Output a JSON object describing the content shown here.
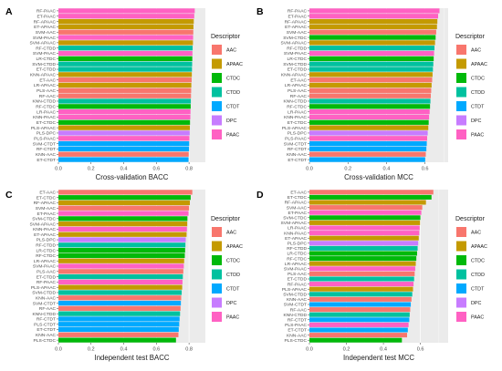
{
  "legend_title": "Descriptor",
  "legend_items": [
    "AAC",
    "APAAC",
    "CTDC",
    "CTDD",
    "CTDT",
    "DPC",
    "PAAC"
  ],
  "colors": {
    "AAC": "#F8766D",
    "APAAC": "#C49A00",
    "CTDC": "#00B90A",
    "CTDD": "#00C19F",
    "CTDT": "#00A9FF",
    "DPC": "#C77CFF",
    "PAAC": "#FF61C3",
    "background": "#EBEBEB",
    "grid": "#FFFFFF"
  },
  "chart_data": [
    {
      "type": "bar",
      "orientation": "horizontal",
      "panel": "A",
      "xlabel": "Cross-validation BACC",
      "ylabel": "",
      "xlim": [
        0,
        0.9
      ],
      "xticks": [
        "0.0",
        "0.2",
        "0.4",
        "0.6",
        "0.8"
      ],
      "categories": [
        "RF-PAAC",
        "ET-PAAC",
        "RF-APAAC",
        "ET-APAAC",
        "SVM-AAC",
        "SVM-PAAC",
        "SVM-APAAC",
        "RF-CTDD",
        "SVM-PAAC",
        "LR-CTDC",
        "SVM-CTDD",
        "ET-CTDD",
        "KNN-APAAC",
        "ET-AAC",
        "LR-APAAC",
        "PLS-AAC",
        "RF-AAC",
        "KNN-CTDD",
        "RF-CTDC",
        "LR-PAAC",
        "KNN-PAAC",
        "ET-CTDC",
        "PLS-APAAC",
        "PLS-DPC",
        "PLS-PAAC",
        "SVM-CTDT",
        "RF-CTDT",
        "KNN-AAC",
        "ET-CTDT"
      ],
      "descriptors": [
        "PAAC",
        "PAAC",
        "APAAC",
        "APAAC",
        "AAC",
        "PAAC",
        "APAAC",
        "CTDD",
        "PAAC",
        "CTDC",
        "CTDD",
        "CTDD",
        "APAAC",
        "AAC",
        "APAAC",
        "AAC",
        "AAC",
        "CTDD",
        "CTDC",
        "PAAC",
        "PAAC",
        "CTDC",
        "APAAC",
        "DPC",
        "PAAC",
        "CTDT",
        "CTDT",
        "AAC",
        "CTDT"
      ],
      "values": [
        0.835,
        0.832,
        0.829,
        0.827,
        0.826,
        0.825,
        0.824,
        0.822,
        0.821,
        0.82,
        0.819,
        0.818,
        0.817,
        0.816,
        0.814,
        0.813,
        0.812,
        0.811,
        0.81,
        0.809,
        0.808,
        0.806,
        0.805,
        0.804,
        0.802,
        0.801,
        0.8,
        0.798,
        0.797
      ]
    },
    {
      "type": "bar",
      "orientation": "horizontal",
      "panel": "B",
      "xlabel": "Cross-validation MCC",
      "ylabel": "",
      "xlim": [
        0,
        0.72
      ],
      "xticks": [
        "0.0",
        "0.2",
        "0.4",
        "0.6"
      ],
      "categories": [
        "RF-PAAC",
        "ET-PAAC",
        "RF-APAAC",
        "ET-APAAC",
        "SVM-AAC",
        "SVM-CTDC",
        "SVM-APAAC",
        "RF-CTDD",
        "SVM-PAAC",
        "LR-CTDC",
        "SVM-CTDD",
        "ET-CTDD",
        "KNN-APAAC",
        "ET-AAC",
        "LR-APAAC",
        "PLS-AAC",
        "RF-AAC",
        "KNN-CTDD",
        "RF-CTDC",
        "LR-PAAC",
        "KNN-PAAC",
        "ET-CTDC",
        "PLS-APAAC",
        "PLS-DPC",
        "PLS-PAAC",
        "SVM-CTDT",
        "RF-CTDT",
        "KNN-AAC",
        "ET-CTDT"
      ],
      "descriptors": [
        "PAAC",
        "PAAC",
        "APAAC",
        "APAAC",
        "AAC",
        "CTDC",
        "APAAC",
        "CTDD",
        "PAAC",
        "CTDC",
        "CTDD",
        "CTDD",
        "APAAC",
        "AAC",
        "APAAC",
        "AAC",
        "AAC",
        "CTDD",
        "CTDC",
        "PAAC",
        "PAAC",
        "CTDC",
        "APAAC",
        "DPC",
        "PAAC",
        "CTDT",
        "CTDT",
        "AAC",
        "CTDT"
      ],
      "values": [
        0.675,
        0.668,
        0.664,
        0.662,
        0.658,
        0.655,
        0.652,
        0.649,
        0.647,
        0.645,
        0.643,
        0.641,
        0.639,
        0.637,
        0.634,
        0.632,
        0.63,
        0.628,
        0.626,
        0.624,
        0.621,
        0.619,
        0.617,
        0.614,
        0.611,
        0.609,
        0.607,
        0.604,
        0.601
      ]
    },
    {
      "type": "bar",
      "orientation": "horizontal",
      "panel": "C",
      "xlabel": "Independent test BACC",
      "ylabel": "",
      "xlim": [
        0,
        0.9
      ],
      "xticks": [
        "0.0",
        "0.2",
        "0.4",
        "0.6",
        "0.8"
      ],
      "categories": [
        "ET-AAC",
        "ET-CTDC",
        "RF-APAAC",
        "SVM-AAC",
        "ET-PAAC",
        "SVM-CTDC",
        "SVM-APAAC",
        "KNN-PAAC",
        "ET-APAAC",
        "PLS-DPC",
        "RF-CTDD",
        "LR-CTDC",
        "RF-CTDC",
        "LR-APAAC",
        "SVM-PAAC",
        "PLS-AAC",
        "ET-CTDD",
        "RF-PAAC",
        "PLS-APAAC",
        "SVM-CTDD",
        "KNN-AAC",
        "SVM-CTDT",
        "RF-AAC",
        "KNN-CTDD",
        "RF-CTDT",
        "PLS-CTDT",
        "ET-CTDT",
        "KNN-AAC",
        "PLS-CTDC"
      ],
      "descriptors": [
        "AAC",
        "CTDC",
        "APAAC",
        "AAC",
        "PAAC",
        "CTDC",
        "APAAC",
        "PAAC",
        "APAAC",
        "DPC",
        "CTDD",
        "CTDC",
        "CTDC",
        "APAAC",
        "PAAC",
        "AAC",
        "CTDD",
        "PAAC",
        "APAAC",
        "CTDD",
        "AAC",
        "CTDT",
        "AAC",
        "CTDD",
        "CTDT",
        "CTDT",
        "CTDT",
        "AAC",
        "CTDC"
      ],
      "values": [
        0.82,
        0.81,
        0.805,
        0.8,
        0.797,
        0.79,
        0.789,
        0.787,
        0.785,
        0.78,
        0.778,
        0.776,
        0.774,
        0.77,
        0.768,
        0.765,
        0.762,
        0.76,
        0.758,
        0.755,
        0.752,
        0.75,
        0.748,
        0.745,
        0.742,
        0.74,
        0.737,
        0.735,
        0.72
      ]
    },
    {
      "type": "bar",
      "orientation": "horizontal",
      "panel": "D",
      "xlabel": "Independent test MCC",
      "ylabel": "",
      "xlim": [
        0,
        0.75
      ],
      "xticks": [
        "0.0",
        "0.2",
        "0.4",
        "0.6"
      ],
      "categories": [
        "ET-AAC",
        "ET-CTDC",
        "RF-APAAC",
        "SVM-AAC",
        "ET-PAAC",
        "SVM-CTDC",
        "SVM-APAAC",
        "LR-PAAC",
        "KNN-PAAC",
        "ET-APAAC",
        "PLS-DPC",
        "RF-CTDD",
        "LR-CTDC",
        "RF-CTDC",
        "LR-APAAC",
        "SVM-PAAC",
        "PLS-AAC",
        "ET-CTDD",
        "RF-PAAC",
        "PLS-APAAC",
        "SVM-CTDD",
        "KNN-AAC",
        "SVM-CTDT",
        "RF-AAC",
        "KNN-CTDD",
        "RF-CTDT",
        "PLS-PAAC",
        "ET-CTDT",
        "KNN-AAC",
        "PLS-CTDC"
      ],
      "descriptors": [
        "AAC",
        "CTDC",
        "APAAC",
        "AAC",
        "PAAC",
        "CTDC",
        "APAAC",
        "PAAC",
        "PAAC",
        "APAAC",
        "DPC",
        "CTDD",
        "CTDC",
        "CTDC",
        "APAAC",
        "PAAC",
        "AAC",
        "CTDD",
        "PAAC",
        "APAAC",
        "CTDD",
        "AAC",
        "CTDT",
        "AAC",
        "CTDD",
        "CTDT",
        "PAAC",
        "CTDT",
        "AAC",
        "CTDC"
      ],
      "values": [
        0.67,
        0.66,
        0.63,
        0.61,
        0.605,
        0.6,
        0.598,
        0.596,
        0.594,
        0.591,
        0.588,
        0.585,
        0.582,
        0.578,
        0.575,
        0.572,
        0.569,
        0.566,
        0.563,
        0.56,
        0.556,
        0.552,
        0.548,
        0.545,
        0.542,
        0.54,
        0.536,
        0.532,
        0.528,
        0.5
      ]
    }
  ]
}
